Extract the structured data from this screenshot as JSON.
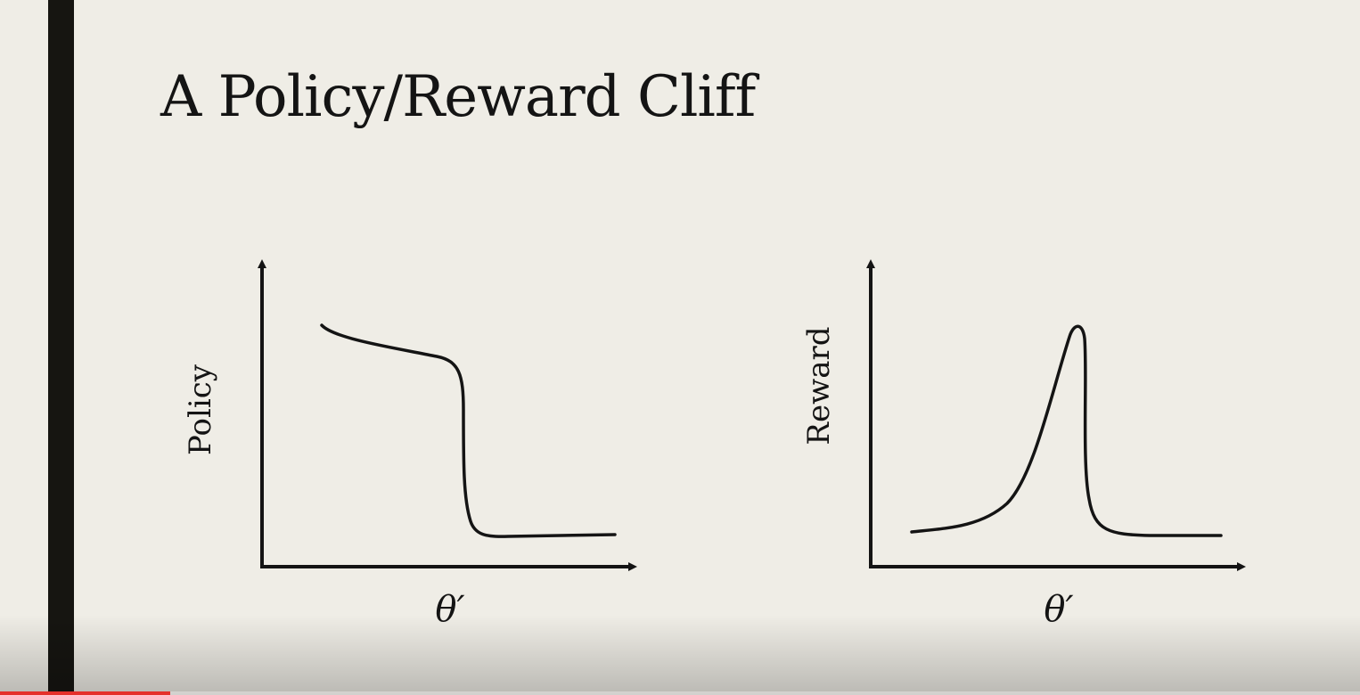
{
  "slide": {
    "title": "A Policy/Reward Cliff"
  },
  "graphs": [
    {
      "id": "policy",
      "ylabel": "Policy",
      "xlabel": "θ′"
    },
    {
      "id": "reward",
      "ylabel": "Reward",
      "xlabel": "θ′"
    }
  ],
  "video": {
    "progress": 0.125,
    "progress_color": "#e5312b"
  },
  "colors": {
    "background": "#efede6",
    "ink": "#141414",
    "side_bar": "#161511"
  }
}
